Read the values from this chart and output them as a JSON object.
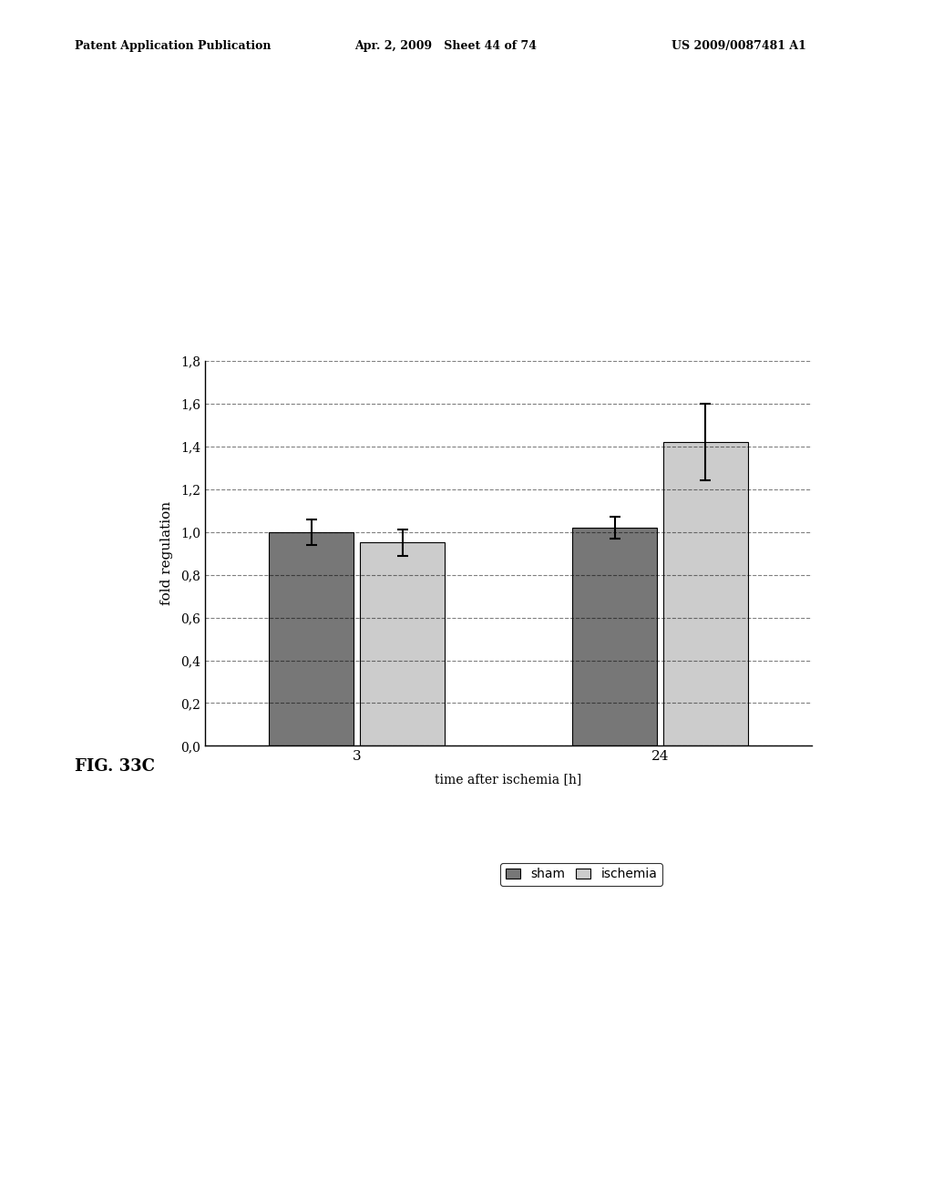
{
  "header_left": "Patent Application Publication",
  "header_mid": "Apr. 2, 2009   Sheet 44 of 74",
  "header_right": "US 2009/0087481 A1",
  "fig_label": "FIG. 33C",
  "ylabel": "fold regulation",
  "xlabel": "time after ischemia [h]",
  "group_labels": [
    "3",
    "24"
  ],
  "bar_values": [
    [
      1.0,
      0.95
    ],
    [
      1.02,
      1.42
    ]
  ],
  "bar_errors": [
    [
      0.06,
      0.06
    ],
    [
      0.05,
      0.18
    ]
  ],
  "sham_color": "#777777",
  "ischemia_color": "#cccccc",
  "ylim": [
    0.0,
    1.8
  ],
  "yticks": [
    0.0,
    0.2,
    0.4,
    0.6,
    0.8,
    1.0,
    1.2,
    1.4,
    1.6,
    1.8
  ],
  "ytick_labels": [
    "0,0",
    "0,2",
    "0,4",
    "0,6",
    "0,8",
    "1,0",
    "1,2",
    "1,4",
    "1,6",
    "1,8"
  ],
  "legend_labels": [
    "sham",
    "ischemia"
  ],
  "background_color": "#ffffff"
}
